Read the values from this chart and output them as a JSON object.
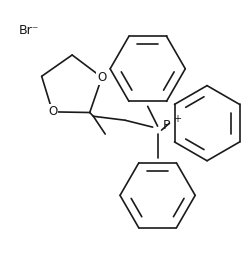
{
  "bg_color": "#ffffff",
  "line_color": "#1a1a1a",
  "line_width": 1.2,
  "br_label": "Br⁻",
  "br_fontsize": 9,
  "p_label": "P",
  "p_plus": "+",
  "p_fontsize": 8,
  "figsize": [
    2.46,
    2.78
  ],
  "dpi": 100,
  "ph_ring_r": 0.082,
  "dioxolane_r": 0.072
}
